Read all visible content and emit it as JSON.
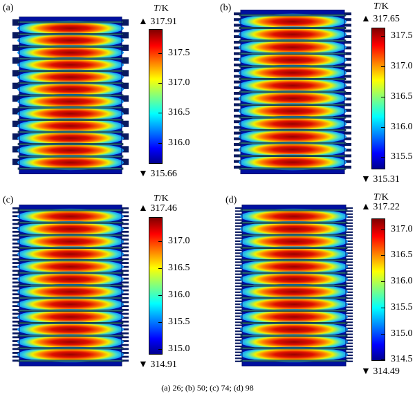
{
  "figure": {
    "caption": "(a) 26; (b) 50; (c) 74; (d) 98",
    "colormap": "jet",
    "panels": [
      {
        "label": "(a)",
        "colorbar_title_var": "T",
        "colorbar_title_unit": "/K",
        "max_label": "▲ 317.91",
        "min_label": "▼ 315.66",
        "ticks": [
          "317.5",
          "317.0",
          "316.5",
          "316.0"
        ],
        "value_range": [
          315.66,
          317.91
        ],
        "tick_values": [
          317.5,
          317.0,
          316.5,
          316.0
        ],
        "bands": 12
      },
      {
        "label": "(b)",
        "colorbar_title_var": "T",
        "colorbar_title_unit": "/K",
        "max_label": "▲ 317.65",
        "min_label": "▼ 315.31",
        "ticks": [
          "317.5",
          "317.0",
          "316.5",
          "316.0",
          "315.5"
        ],
        "value_range": [
          315.31,
          317.65
        ],
        "tick_values": [
          317.5,
          317.0,
          316.5,
          316.0,
          315.5
        ],
        "bands": 12
      },
      {
        "label": "(c)",
        "colorbar_title_var": "T",
        "colorbar_title_unit": "/K",
        "max_label": "▲ 317.46",
        "min_label": "▼ 314.91",
        "ticks": [
          "317.0",
          "316.5",
          "316.0",
          "315.5",
          "315.0"
        ],
        "value_range": [
          314.91,
          317.46
        ],
        "tick_values": [
          317.0,
          316.5,
          316.0,
          315.5,
          315.0
        ],
        "bands": 12
      },
      {
        "label": "(d)",
        "colorbar_title_var": "T",
        "colorbar_title_unit": "/K",
        "max_label": "▲ 317.22",
        "min_label": "▼ 314.49",
        "ticks": [
          "317.0",
          "316.5",
          "316.0",
          "315.5",
          "315.0",
          "314.5"
        ],
        "value_range": [
          314.49,
          317.22
        ],
        "tick_values": [
          317.0,
          316.5,
          316.0,
          315.5,
          315.0,
          314.5
        ],
        "bands": 12
      }
    ]
  }
}
